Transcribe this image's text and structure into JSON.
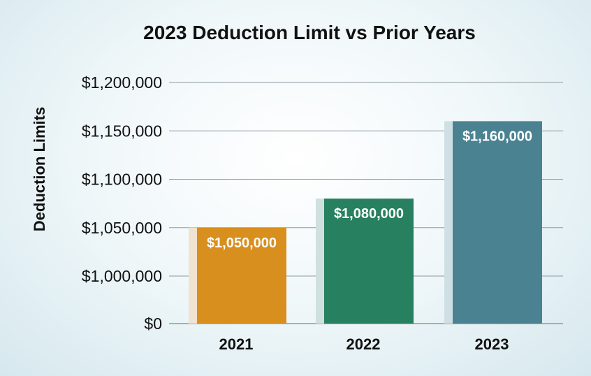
{
  "chart_data": {
    "type": "bar",
    "title": "2023 Deduction Limit vs Prior Years",
    "ylabel": "Deduction Limits",
    "xlabel": "",
    "categories": [
      "2021",
      "2022",
      "2023"
    ],
    "values": [
      1050000,
      1080000,
      1160000
    ],
    "data_labels": [
      "$1,050,000",
      "$1,080,000",
      "$1,160,000"
    ],
    "y_ticks": [
      "$0",
      "$1,000,000",
      "$1,050,000",
      "$1,100,000",
      "$1,150,000",
      "$1,200,000"
    ],
    "y_tick_values": [
      0,
      1000000,
      1050000,
      1100000,
      1150000,
      1200000
    ],
    "y_axis_break": true,
    "grid": true,
    "legend": "none",
    "colors": [
      "#d88f1d",
      "#27805f",
      "#4a8291"
    ],
    "shadow_colors": [
      "#f0e3cf",
      "#cfe0de",
      "#cfe0e4"
    ],
    "gridline_color": "#8d9a9f"
  }
}
